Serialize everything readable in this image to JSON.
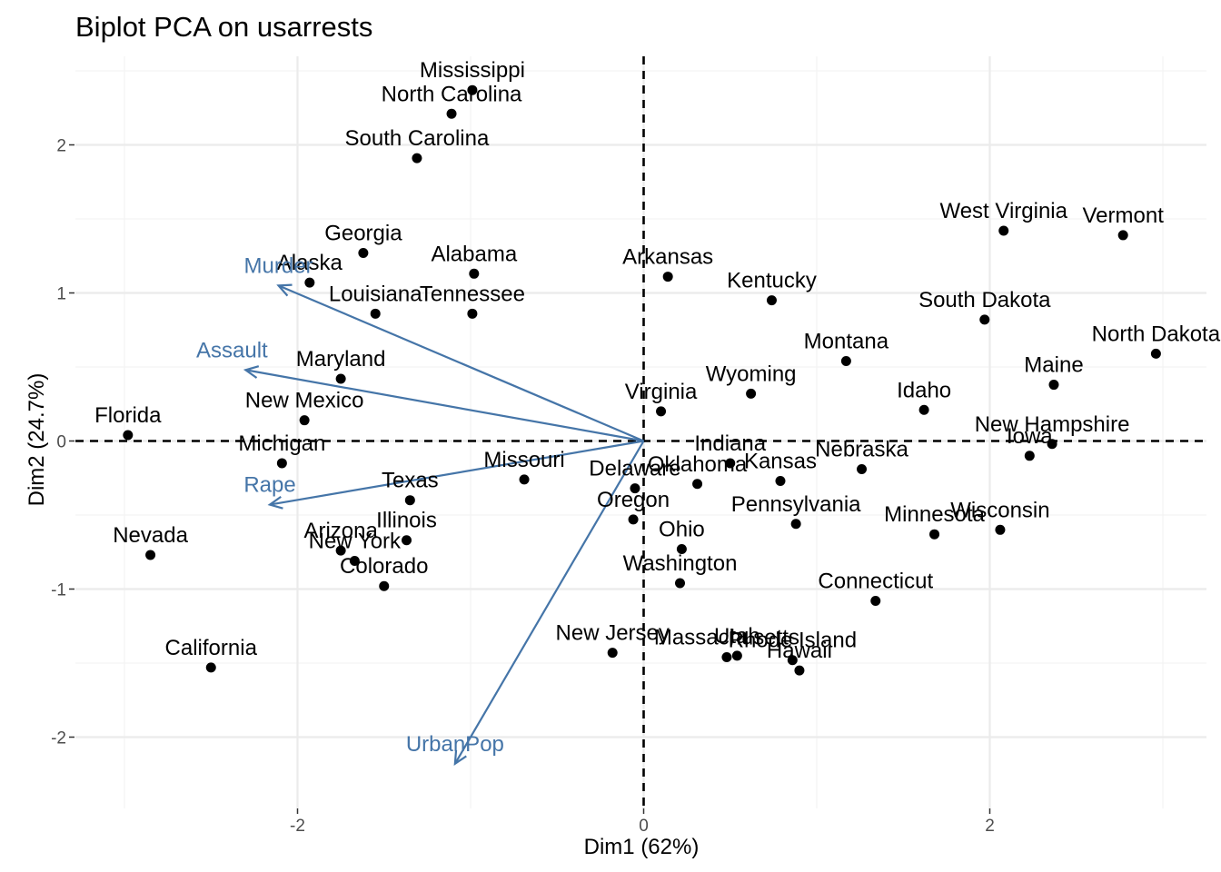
{
  "chart_data": {
    "type": "scatter",
    "title": "Biplot PCA on usarrests",
    "xlabel": "Dim1 (62%)",
    "ylabel": "Dim2 (24.7%)",
    "xlim": [
      -3.35,
      3.2
    ],
    "ylim": [
      -2.35,
      2.6
    ],
    "xticks": [
      -2,
      0,
      2
    ],
    "yticks": [
      -2,
      -1,
      0,
      1,
      2
    ],
    "grid": true,
    "reference_lines": {
      "x": 0,
      "y": 0,
      "style": "dashed"
    },
    "colors": {
      "points": "#000000",
      "arrows": "#4575a8",
      "grid": "#ebebeb"
    },
    "points": [
      {
        "label": "Alabama",
        "x": -0.98,
        "y": 1.13
      },
      {
        "label": "Alaska",
        "x": -1.93,
        "y": 1.07
      },
      {
        "label": "Arizona",
        "x": -1.75,
        "y": -0.74
      },
      {
        "label": "Arkansas",
        "x": 0.14,
        "y": 1.11
      },
      {
        "label": "California",
        "x": -2.5,
        "y": -1.53
      },
      {
        "label": "Colorado",
        "x": -1.5,
        "y": -0.98
      },
      {
        "label": "Connecticut",
        "x": 1.34,
        "y": -1.08
      },
      {
        "label": "Delaware",
        "x": -0.05,
        "y": -0.32
      },
      {
        "label": "Florida",
        "x": -2.98,
        "y": 0.04
      },
      {
        "label": "Georgia",
        "x": -1.62,
        "y": 1.27
      },
      {
        "label": "Hawaii",
        "x": 0.9,
        "y": -1.55
      },
      {
        "label": "Idaho",
        "x": 1.62,
        "y": 0.21
      },
      {
        "label": "Illinois",
        "x": -1.37,
        "y": -0.67
      },
      {
        "label": "Indiana",
        "x": 0.5,
        "y": -0.15
      },
      {
        "label": "Iowa",
        "x": 2.23,
        "y": -0.1
      },
      {
        "label": "Kansas",
        "x": 0.79,
        "y": -0.27
      },
      {
        "label": "Kentucky",
        "x": 0.74,
        "y": 0.95
      },
      {
        "label": "Louisiana",
        "x": -1.55,
        "y": 0.86
      },
      {
        "label": "Maine",
        "x": 2.37,
        "y": 0.38
      },
      {
        "label": "Maryland",
        "x": -1.75,
        "y": 0.42
      },
      {
        "label": "Massachusetts",
        "x": 0.48,
        "y": -1.46
      },
      {
        "label": "Michigan",
        "x": -2.09,
        "y": -0.15
      },
      {
        "label": "Minnesota",
        "x": 1.68,
        "y": -0.63
      },
      {
        "label": "Mississippi",
        "x": -0.99,
        "y": 2.37
      },
      {
        "label": "Missouri",
        "x": -0.69,
        "y": -0.26
      },
      {
        "label": "Montana",
        "x": 1.17,
        "y": 0.54
      },
      {
        "label": "Nebraska",
        "x": 1.26,
        "y": -0.19
      },
      {
        "label": "Nevada",
        "x": -2.85,
        "y": -0.77
      },
      {
        "label": "New Hampshire",
        "x": 2.36,
        "y": -0.02
      },
      {
        "label": "New Jersey",
        "x": -0.18,
        "y": -1.43
      },
      {
        "label": "New Mexico",
        "x": -1.96,
        "y": 0.14
      },
      {
        "label": "New York",
        "x": -1.67,
        "y": -0.81
      },
      {
        "label": "North Carolina",
        "x": -1.11,
        "y": 2.21
      },
      {
        "label": "North Dakota",
        "x": 2.96,
        "y": 0.59
      },
      {
        "label": "Ohio",
        "x": 0.22,
        "y": -0.73
      },
      {
        "label": "Oklahoma",
        "x": 0.31,
        "y": -0.29
      },
      {
        "label": "Oregon",
        "x": -0.06,
        "y": -0.53
      },
      {
        "label": "Pennsylvania",
        "x": 0.88,
        "y": -0.56
      },
      {
        "label": "Rhode Island",
        "x": 0.86,
        "y": -1.48
      },
      {
        "label": "South Carolina",
        "x": -1.31,
        "y": 1.91
      },
      {
        "label": "South Dakota",
        "x": 1.97,
        "y": 0.82
      },
      {
        "label": "Tennessee",
        "x": -0.99,
        "y": 0.86
      },
      {
        "label": "Texas",
        "x": -1.35,
        "y": -0.4
      },
      {
        "label": "Utah",
        "x": 0.54,
        "y": -1.45
      },
      {
        "label": "Vermont",
        "x": 2.77,
        "y": 1.39
      },
      {
        "label": "Virginia",
        "x": 0.1,
        "y": 0.2
      },
      {
        "label": "Washington",
        "x": 0.21,
        "y": -0.96
      },
      {
        "label": "West Virginia",
        "x": 2.08,
        "y": 1.42
      },
      {
        "label": "Wisconsin",
        "x": 2.06,
        "y": -0.6
      },
      {
        "label": "Wyoming",
        "x": 0.62,
        "y": 0.32
      }
    ],
    "variables": [
      {
        "label": "Murder",
        "x": -2.11,
        "y": 1.05
      },
      {
        "label": "Assault",
        "x": -2.3,
        "y": 0.48
      },
      {
        "label": "UrbanPop",
        "x": -1.09,
        "y": -2.18
      },
      {
        "label": "Rape",
        "x": -2.16,
        "y": -0.43
      }
    ]
  }
}
